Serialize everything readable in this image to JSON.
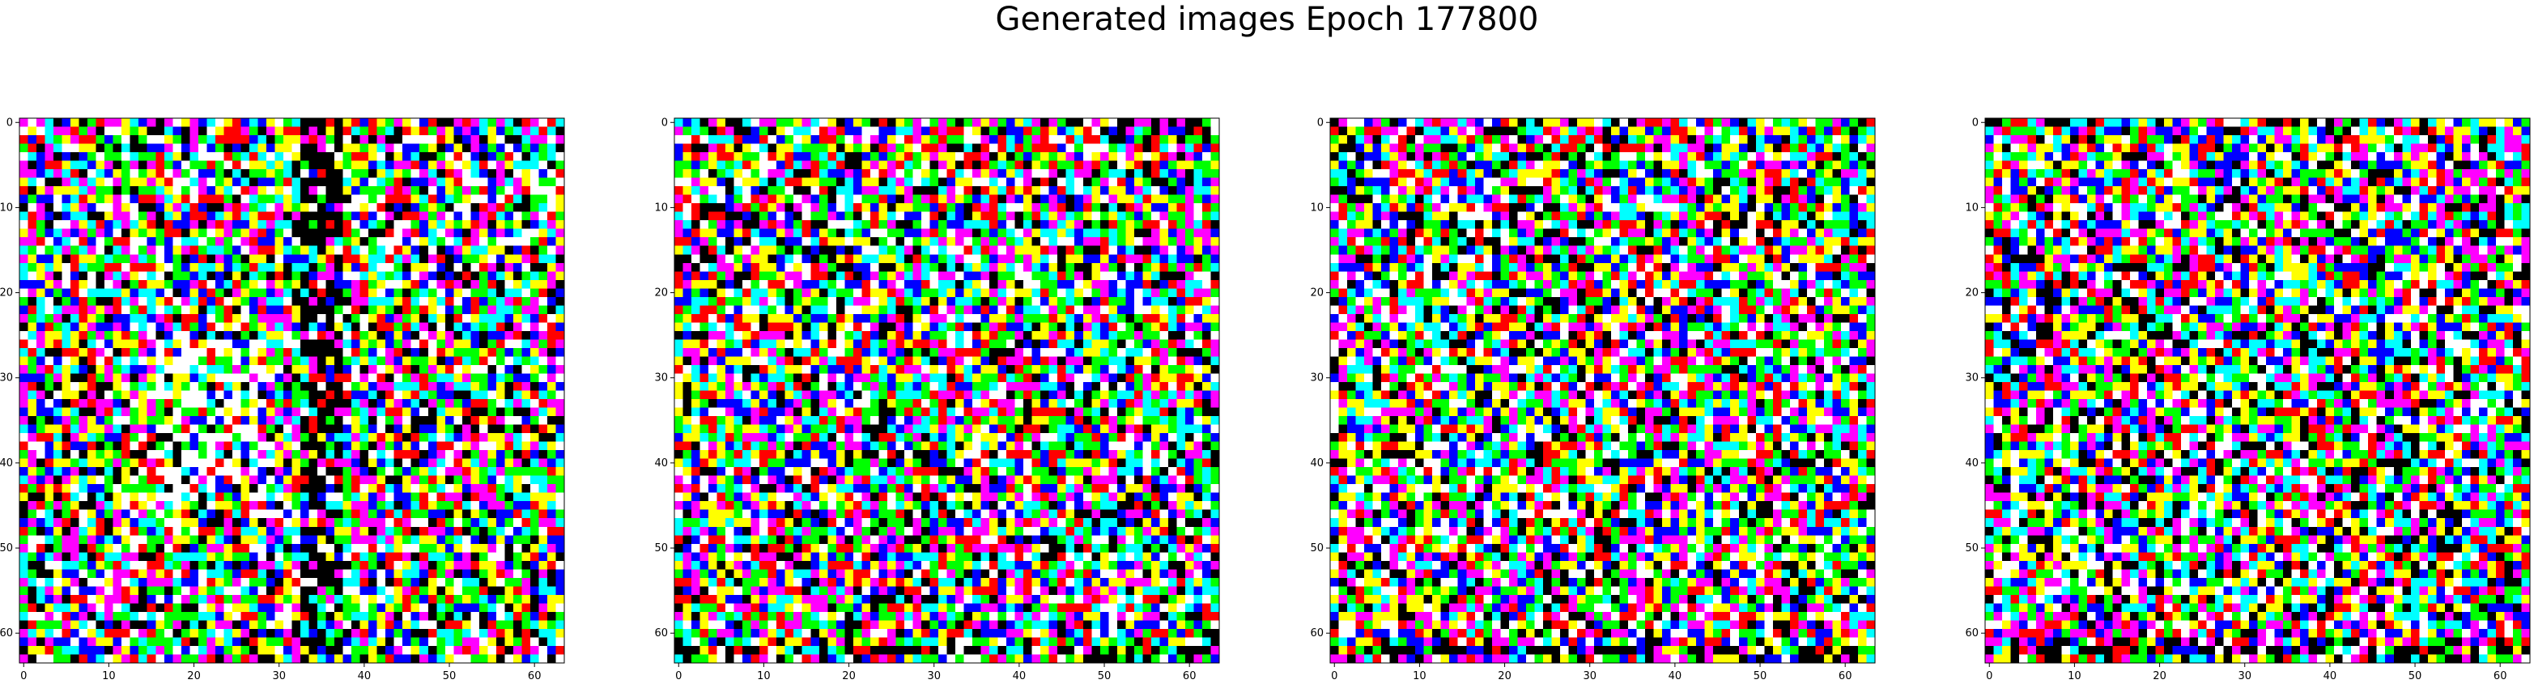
{
  "figure": {
    "title": "Generated images Epoch 177800"
  },
  "chart_data": {
    "type": "heatmap",
    "title": "Generated images Epoch 177800",
    "panel_count": 4,
    "image_shape": [
      64,
      64
    ],
    "palette": [
      "#ff0000",
      "#00ff00",
      "#0000ff",
      "#ffff00",
      "#ff00ff",
      "#00ffff",
      "#000000",
      "#ffffff"
    ],
    "x_ticks": [
      0,
      10,
      20,
      30,
      40,
      50,
      60
    ],
    "y_ticks": [
      0,
      10,
      20,
      30,
      40,
      50,
      60
    ],
    "xlim": [
      -0.5,
      63.5
    ],
    "ylim": [
      63.5,
      -0.5
    ],
    "grid": false,
    "panels": [
      {
        "image": "generated-sample-1"
      },
      {
        "image": "generated-sample-2"
      },
      {
        "image": "generated-sample-3"
      },
      {
        "image": "generated-sample-4"
      }
    ]
  }
}
